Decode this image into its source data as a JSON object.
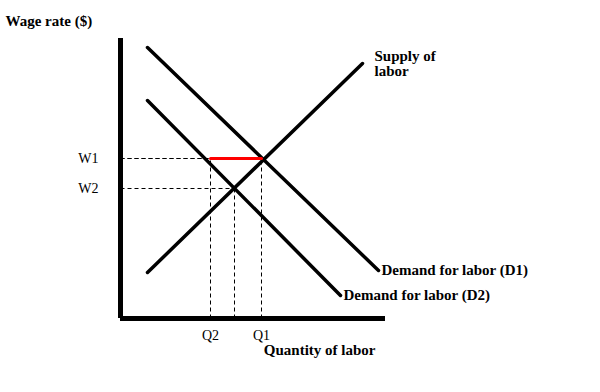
{
  "chart_data": {
    "type": "line",
    "x_label": "Quantity of labor",
    "y_label": "Wage rate ($)",
    "xlim": [
      0,
      26.5
    ],
    "ylim": [
      0,
      28
    ],
    "xticks": [
      {
        "value": 9.0,
        "label": "Q2"
      },
      {
        "value": 14.1,
        "label": "Q1"
      }
    ],
    "yticks": [
      {
        "value": 13.0,
        "label": "W2"
      },
      {
        "value": 16.0,
        "label": "W1"
      }
    ],
    "grid": false,
    "series": [
      {
        "name": "Supply of labor",
        "color": "#000000",
        "x": [
          2.7,
          24.2
        ],
        "values": [
          4.6,
          25.5
        ]
      },
      {
        "name": "Demand for labor (D1)",
        "color": "#000000",
        "x": [
          2.7,
          25.8
        ],
        "values": [
          27.1,
          4.8
        ]
      },
      {
        "name": "Demand for labor (D2)",
        "color": "#000000",
        "x": [
          2.7,
          22.0
        ],
        "values": [
          21.8,
          2.3
        ]
      }
    ],
    "guides": {
      "line_style": "dashed",
      "color": "#000000",
      "points": [
        {
          "x": 14.1,
          "y": 16.0
        },
        {
          "x": 11.4,
          "y": 13.0
        },
        {
          "x": 9.0,
          "y": 16.0
        }
      ]
    },
    "highlight": {
      "color": "#ff0000",
      "x": [
        9.0,
        14.1
      ],
      "values": [
        16.0,
        16.0
      ]
    }
  }
}
